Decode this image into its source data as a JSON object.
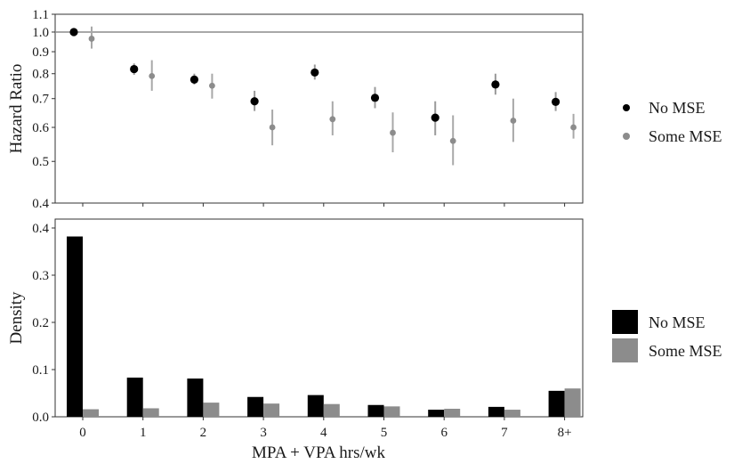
{
  "chart_data": [
    {
      "type": "scatter",
      "panel": "top",
      "ylabel": "Hazard Ratio",
      "yscale": "log",
      "ylim": [
        0.4,
        1.1
      ],
      "yticks": [
        0.4,
        0.5,
        0.6,
        0.7,
        0.8,
        0.9,
        1.0,
        1.1
      ],
      "ytick_labels": [
        "0.4",
        "0.5",
        "0.6",
        "0.7",
        "0.8",
        "0.9",
        "1.0",
        "1.1"
      ],
      "reference_line": 1.0,
      "categories": [
        "0",
        "1",
        "2",
        "3",
        "4",
        "5",
        "6",
        "7",
        "8+"
      ],
      "series": [
        {
          "name": "No MSE",
          "color": "#000000",
          "values": [
            1.0,
            0.82,
            0.775,
            0.69,
            0.805,
            0.703,
            0.632,
            0.755,
            0.688
          ],
          "lower": [
            1.0,
            0.795,
            0.755,
            0.655,
            0.775,
            0.665,
            0.575,
            0.715,
            0.655
          ],
          "upper": [
            1.0,
            0.845,
            0.8,
            0.73,
            0.84,
            0.745,
            0.69,
            0.8,
            0.725
          ]
        },
        {
          "name": "Some MSE",
          "color": "#8c8c8c",
          "values": [
            0.965,
            0.79,
            0.75,
            0.6,
            0.627,
            0.583,
            0.558,
            0.622,
            0.6
          ],
          "lower": [
            0.915,
            0.73,
            0.7,
            0.545,
            0.575,
            0.525,
            0.49,
            0.555,
            0.565
          ],
          "upper": [
            1.03,
            0.86,
            0.8,
            0.66,
            0.69,
            0.65,
            0.64,
            0.7,
            0.645
          ]
        }
      ],
      "legend": {
        "position": "right",
        "entries": [
          "No MSE",
          "Some MSE"
        ]
      }
    },
    {
      "type": "bar",
      "panel": "bottom",
      "xlabel": "MPA + VPA hrs/wk",
      "ylabel": "Density",
      "ylim": [
        0,
        0.4
      ],
      "yticks": [
        0.0,
        0.1,
        0.2,
        0.3,
        0.4
      ],
      "ytick_labels": [
        "0.0",
        "0.1",
        "0.2",
        "0.3",
        "0.4"
      ],
      "categories": [
        "0",
        "1",
        "2",
        "3",
        "4",
        "5",
        "6",
        "7",
        "8+"
      ],
      "series": [
        {
          "name": "No MSE",
          "color": "#000000",
          "values": [
            0.382,
            0.083,
            0.081,
            0.042,
            0.046,
            0.025,
            0.015,
            0.021,
            0.055
          ]
        },
        {
          "name": "Some MSE",
          "color": "#8c8c8c",
          "values": [
            0.016,
            0.018,
            0.03,
            0.028,
            0.027,
            0.022,
            0.017,
            0.015,
            0.06
          ]
        }
      ],
      "legend": {
        "position": "right",
        "entries": [
          "No MSE",
          "Some MSE"
        ]
      }
    }
  ]
}
